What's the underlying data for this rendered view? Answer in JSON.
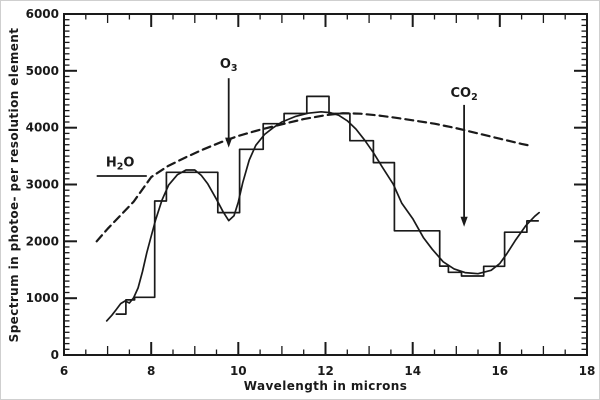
{
  "figure": {
    "background": "#ffffff",
    "ink_color": "#1a1a1a",
    "border_color": "#cfcfcf"
  },
  "chart_data": {
    "type": "line",
    "title": "",
    "xlabel": "Wavelength in microns",
    "ylabel": "Spectrum in photoe- per resolution element",
    "xlim": [
      6,
      18
    ],
    "ylim": [
      0,
      6000
    ],
    "x_tick_labels": [
      "6",
      "8",
      "10",
      "12",
      "14",
      "16",
      "18"
    ],
    "y_tick_labels": [
      "0",
      "1000",
      "2000",
      "3000",
      "4000",
      "5000",
      "6000"
    ],
    "x_minor_step": 0.5,
    "y_minor_step": 100,
    "grid": false,
    "legend_position": "none",
    "series": [
      {
        "name": "observed-spectrum-histogram",
        "line": "solid-step",
        "bins": [
          [
            7.2,
            7.42,
            720
          ],
          [
            7.42,
            7.62,
            970
          ],
          [
            7.62,
            8.08,
            1015
          ],
          [
            8.08,
            8.35,
            2710
          ],
          [
            8.35,
            9.53,
            3215
          ],
          [
            9.53,
            10.03,
            2505
          ],
          [
            10.03,
            10.57,
            3620
          ],
          [
            10.57,
            11.05,
            4070
          ],
          [
            11.05,
            11.57,
            4250
          ],
          [
            11.57,
            12.08,
            4550
          ],
          [
            12.08,
            12.56,
            4250
          ],
          [
            12.56,
            13.1,
            3770
          ],
          [
            13.1,
            13.58,
            3385
          ],
          [
            13.58,
            14.62,
            2185
          ],
          [
            14.62,
            14.82,
            1565
          ],
          [
            14.82,
            15.12,
            1455
          ],
          [
            15.12,
            15.63,
            1390
          ],
          [
            15.63,
            16.11,
            1560
          ],
          [
            16.11,
            16.62,
            2160
          ],
          [
            16.62,
            16.88,
            2360
          ]
        ]
      },
      {
        "name": "smoothed-model-curve",
        "line": "solid",
        "points": [
          [
            6.98,
            600
          ],
          [
            7.1,
            700
          ],
          [
            7.2,
            800
          ],
          [
            7.3,
            905
          ],
          [
            7.4,
            950
          ],
          [
            7.5,
            915
          ],
          [
            7.6,
            1010
          ],
          [
            7.7,
            1180
          ],
          [
            7.8,
            1470
          ],
          [
            7.9,
            1800
          ],
          [
            8.0,
            2090
          ],
          [
            8.1,
            2370
          ],
          [
            8.25,
            2730
          ],
          [
            8.4,
            2990
          ],
          [
            8.6,
            3170
          ],
          [
            8.8,
            3255
          ],
          [
            9.0,
            3255
          ],
          [
            9.15,
            3160
          ],
          [
            9.3,
            3010
          ],
          [
            9.5,
            2740
          ],
          [
            9.65,
            2520
          ],
          [
            9.78,
            2365
          ],
          [
            9.9,
            2450
          ],
          [
            10.0,
            2690
          ],
          [
            10.1,
            3030
          ],
          [
            10.25,
            3430
          ],
          [
            10.4,
            3690
          ],
          [
            10.6,
            3880
          ],
          [
            10.8,
            4000
          ],
          [
            11.0,
            4100
          ],
          [
            11.3,
            4195
          ],
          [
            11.6,
            4255
          ],
          [
            11.9,
            4280
          ],
          [
            12.1,
            4265
          ],
          [
            12.3,
            4220
          ],
          [
            12.5,
            4120
          ],
          [
            12.7,
            3975
          ],
          [
            12.9,
            3780
          ],
          [
            13.1,
            3560
          ],
          [
            13.3,
            3310
          ],
          [
            13.55,
            3010
          ],
          [
            13.75,
            2670
          ],
          [
            14.0,
            2400
          ],
          [
            14.25,
            2060
          ],
          [
            14.45,
            1860
          ],
          [
            14.7,
            1640
          ],
          [
            14.95,
            1515
          ],
          [
            15.2,
            1450
          ],
          [
            15.5,
            1430
          ],
          [
            15.8,
            1490
          ],
          [
            16.0,
            1610
          ],
          [
            16.15,
            1770
          ],
          [
            16.35,
            2010
          ],
          [
            16.6,
            2280
          ],
          [
            16.8,
            2440
          ],
          [
            16.9,
            2505
          ]
        ]
      },
      {
        "name": "atmospheric-continuum-dashed",
        "line": "dashed",
        "points": [
          [
            6.75,
            2000
          ],
          [
            7.0,
            2220
          ],
          [
            7.3,
            2460
          ],
          [
            7.6,
            2700
          ],
          [
            8.0,
            3130
          ],
          [
            8.4,
            3330
          ],
          [
            8.8,
            3480
          ],
          [
            9.2,
            3620
          ],
          [
            9.6,
            3745
          ],
          [
            10.0,
            3855
          ],
          [
            10.5,
            3965
          ],
          [
            11.0,
            4060
          ],
          [
            11.5,
            4150
          ],
          [
            12.0,
            4220
          ],
          [
            12.4,
            4255
          ],
          [
            12.8,
            4245
          ],
          [
            13.2,
            4215
          ],
          [
            13.6,
            4175
          ],
          [
            14.0,
            4130
          ],
          [
            14.5,
            4070
          ],
          [
            15.0,
            3990
          ],
          [
            15.5,
            3900
          ],
          [
            16.0,
            3805
          ],
          [
            16.5,
            3715
          ],
          [
            16.72,
            3680
          ]
        ]
      }
    ],
    "annotations": [
      {
        "id": "h2o-label",
        "text": "H2O",
        "parts": [
          {
            "t": "H"
          },
          {
            "t": "2",
            "sub": true
          },
          {
            "t": "O"
          }
        ],
        "x": 7.29,
        "label_y": 3390,
        "underline": {
          "x0": 6.75,
          "x1": 7.9,
          "y": 3150
        }
      },
      {
        "id": "o3-label",
        "text": "O3",
        "parts": [
          {
            "t": "O"
          },
          {
            "t": "3",
            "sub": true
          }
        ],
        "x": 9.78,
        "label_y": 5120,
        "arrow": {
          "from": 4870,
          "to": 3650
        }
      },
      {
        "id": "co2-label",
        "text": "CO2",
        "parts": [
          {
            "t": "C"
          },
          {
            "t": "O"
          },
          {
            "t": "2",
            "sub": true
          }
        ],
        "x": 15.18,
        "label_y": 4610,
        "arrow": {
          "from": 4400,
          "to": 2255
        }
      }
    ]
  }
}
